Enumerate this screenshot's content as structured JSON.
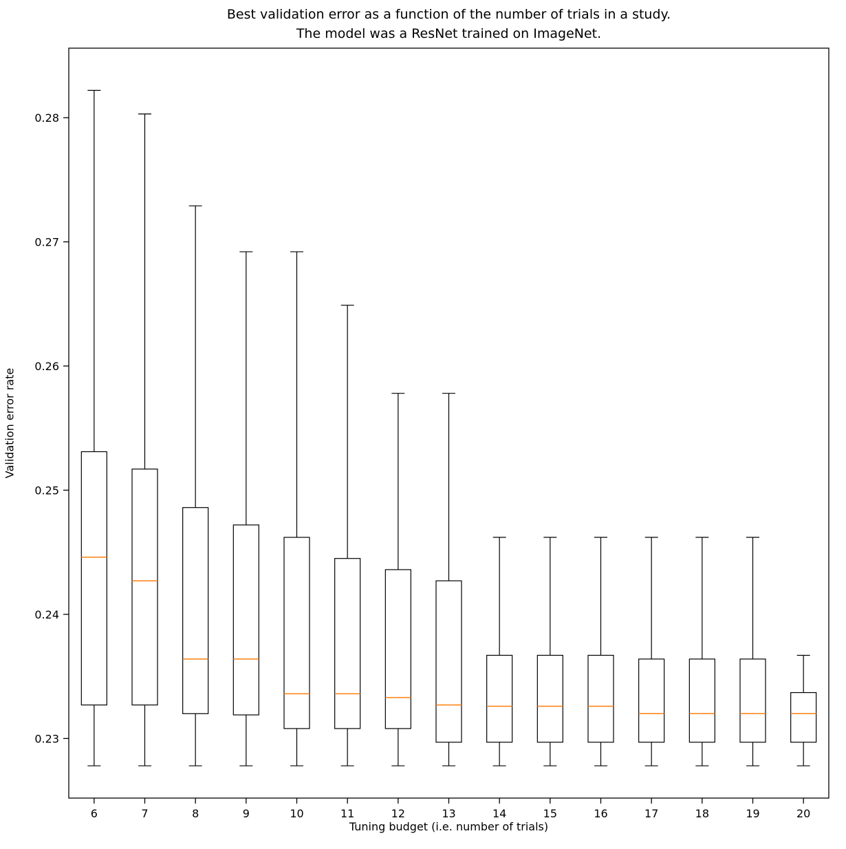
{
  "title": {
    "line1": "Best validation error as a function of the number of trials in a study.",
    "line2": "The model was a ResNet trained on ImageNet."
  },
  "chart_data": {
    "type": "boxplot",
    "title": "Best validation error as a function of the number of trials in a study.\nThe model was a ResNet trained on ImageNet.",
    "xlabel": "Tuning budget (i.e. number of trials)",
    "ylabel": "Validation error rate",
    "categories": [
      6,
      7,
      8,
      9,
      10,
      11,
      12,
      13,
      14,
      15,
      16,
      17,
      18,
      19,
      20
    ],
    "yticks": [
      0.23,
      0.24,
      0.25,
      0.26,
      0.27,
      0.28
    ],
    "ylim": [
      0.2252,
      0.2856
    ],
    "grid": false,
    "legend": "none",
    "colors": {
      "box_edge": "#000000",
      "median": "#ff7f0e",
      "background": "#ffffff"
    },
    "boxes": [
      {
        "budget": 6,
        "whislo": 0.2278,
        "q1": 0.2327,
        "med": 0.2446,
        "q3": 0.2531,
        "whishi": 0.2822
      },
      {
        "budget": 7,
        "whislo": 0.2278,
        "q1": 0.2327,
        "med": 0.2427,
        "q3": 0.2517,
        "whishi": 0.2803
      },
      {
        "budget": 8,
        "whislo": 0.2278,
        "q1": 0.232,
        "med": 0.2364,
        "q3": 0.2486,
        "whishi": 0.2729
      },
      {
        "budget": 9,
        "whislo": 0.2278,
        "q1": 0.2319,
        "med": 0.2364,
        "q3": 0.2472,
        "whishi": 0.2692
      },
      {
        "budget": 10,
        "whislo": 0.2278,
        "q1": 0.2308,
        "med": 0.2336,
        "q3": 0.2462,
        "whishi": 0.2692
      },
      {
        "budget": 11,
        "whislo": 0.2278,
        "q1": 0.2308,
        "med": 0.2336,
        "q3": 0.2445,
        "whishi": 0.2649
      },
      {
        "budget": 12,
        "whislo": 0.2278,
        "q1": 0.2308,
        "med": 0.2333,
        "q3": 0.2436,
        "whishi": 0.2578
      },
      {
        "budget": 13,
        "whislo": 0.2278,
        "q1": 0.2297,
        "med": 0.2327,
        "q3": 0.2427,
        "whishi": 0.2578
      },
      {
        "budget": 14,
        "whislo": 0.2278,
        "q1": 0.2297,
        "med": 0.2326,
        "q3": 0.2367,
        "whishi": 0.2462
      },
      {
        "budget": 15,
        "whislo": 0.2278,
        "q1": 0.2297,
        "med": 0.2326,
        "q3": 0.2367,
        "whishi": 0.2462
      },
      {
        "budget": 16,
        "whislo": 0.2278,
        "q1": 0.2297,
        "med": 0.2326,
        "q3": 0.2367,
        "whishi": 0.2462
      },
      {
        "budget": 17,
        "whislo": 0.2278,
        "q1": 0.2297,
        "med": 0.232,
        "q3": 0.2364,
        "whishi": 0.2462
      },
      {
        "budget": 18,
        "whislo": 0.2278,
        "q1": 0.2297,
        "med": 0.232,
        "q3": 0.2364,
        "whishi": 0.2462
      },
      {
        "budget": 19,
        "whislo": 0.2278,
        "q1": 0.2297,
        "med": 0.232,
        "q3": 0.2364,
        "whishi": 0.2462
      },
      {
        "budget": 20,
        "whislo": 0.2278,
        "q1": 0.2297,
        "med": 0.232,
        "q3": 0.2337,
        "whishi": 0.2367
      }
    ]
  }
}
